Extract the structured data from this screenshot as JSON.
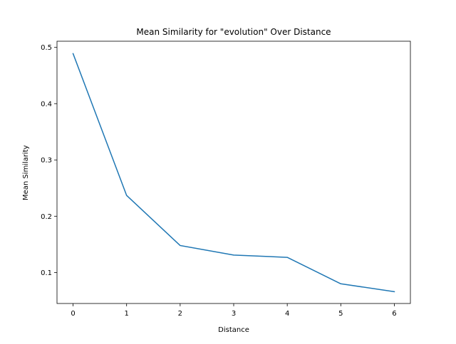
{
  "chart_data": {
    "type": "line",
    "title": "Mean Similarity for \"evolution\" Over Distance",
    "xlabel": "Distance",
    "ylabel": "Mean Similarity",
    "x": [
      0,
      1,
      2,
      3,
      4,
      5,
      6
    ],
    "series": [
      {
        "values": [
          0.489,
          0.237,
          0.148,
          0.131,
          0.127,
          0.08,
          0.066
        ]
      }
    ],
    "xlim": [
      -0.3,
      6.3
    ],
    "ylim": [
      0.045,
      0.511
    ],
    "xticks": [
      "0",
      "1",
      "2",
      "3",
      "4",
      "5",
      "6"
    ],
    "yticks": [
      "0.1",
      "0.2",
      "0.3",
      "0.4",
      "0.5"
    ],
    "line_color": "#1f77b4",
    "grid": false,
    "legend": "none"
  }
}
